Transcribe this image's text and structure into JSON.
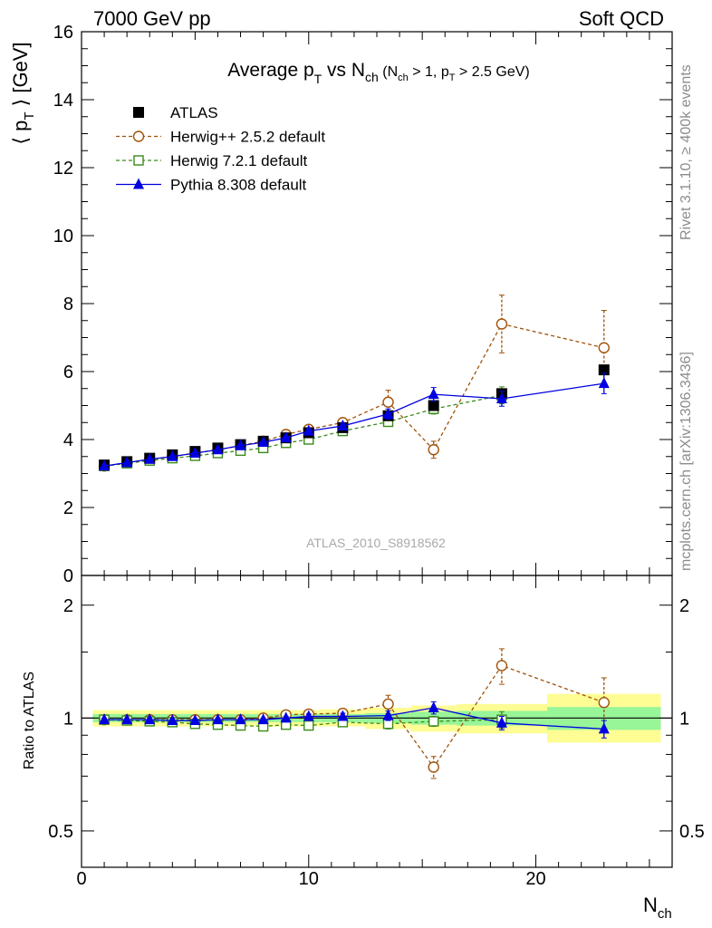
{
  "header": {
    "left": "7000 GeV pp",
    "right": "Soft QCD"
  },
  "side_labels": {
    "rivet": "Rivet 3.1.10, ≥ 400k events",
    "mcplots": "mcplots.cern.ch [arXiv:1306.3436]"
  },
  "analysis_tag": "ATLAS_2010_S8918562",
  "ratio_ylabel": "Ratio to ATLAS",
  "colors": {
    "atlas": "#000000",
    "herwig252": "#a0520a",
    "herwig721": "#3a8a1a",
    "pythia": "#0000e0",
    "band_inner": "#98f598",
    "band_outer": "#fdfd94"
  },
  "chart_data": [
    {
      "type": "scatter",
      "title": "Average p_T vs N_ch (N_ch > 1, p_T > 2.5 GeV)",
      "xlabel": "N_ch",
      "ylabel": "⟨ p_T ⟩ [GeV]",
      "xlim": [
        0,
        26
      ],
      "ylim": [
        0,
        16
      ],
      "x_ticks": [
        0,
        10,
        20
      ],
      "y_ticks": [
        0,
        2,
        4,
        6,
        8,
        10,
        12,
        14,
        16
      ],
      "legend_position": "top-left",
      "series": [
        {
          "name": "ATLAS",
          "marker": "filled-square",
          "x": [
            1,
            2,
            3,
            4,
            5,
            6,
            7,
            8,
            9,
            10,
            11.5,
            13.5,
            15.5,
            18.5,
            23
          ],
          "y": [
            3.25,
            3.35,
            3.45,
            3.55,
            3.65,
            3.75,
            3.85,
            3.95,
            4.05,
            4.2,
            4.35,
            4.7,
            5.0,
            5.35,
            6.05
          ]
        },
        {
          "name": "Herwig++ 2.5.2 default",
          "marker": "open-circle",
          "line": "dashed",
          "x": [
            1,
            2,
            3,
            4,
            5,
            6,
            7,
            8,
            9,
            10,
            11.5,
            13.5,
            15.5,
            18.5,
            23
          ],
          "y": [
            3.22,
            3.32,
            3.42,
            3.5,
            3.6,
            3.7,
            3.82,
            3.95,
            4.15,
            4.3,
            4.5,
            5.1,
            3.7,
            7.4,
            6.7
          ],
          "err": [
            0.03,
            0.03,
            0.03,
            0.03,
            0.03,
            0.04,
            0.04,
            0.05,
            0.06,
            0.07,
            0.1,
            0.35,
            0.25,
            0.85,
            1.1
          ]
        },
        {
          "name": "Herwig 7.2.1 default",
          "marker": "open-square",
          "line": "dashed",
          "x": [
            1,
            2,
            3,
            4,
            5,
            6,
            7,
            8,
            9,
            10,
            11.5,
            13.5,
            15.5,
            18.5
          ],
          "y": [
            3.22,
            3.3,
            3.38,
            3.45,
            3.52,
            3.6,
            3.67,
            3.75,
            3.9,
            4.0,
            4.25,
            4.52,
            4.9,
            5.3
          ],
          "err": [
            0.02,
            0.02,
            0.02,
            0.02,
            0.03,
            0.03,
            0.03,
            0.04,
            0.05,
            0.06,
            0.08,
            0.12,
            0.15,
            0.25
          ]
        },
        {
          "name": "Pythia 8.308 default",
          "marker": "filled-triangle",
          "line": "solid",
          "x": [
            1,
            2,
            3,
            4,
            5,
            6,
            7,
            8,
            9,
            10,
            11.5,
            13.5,
            15.5,
            18.5,
            23
          ],
          "y": [
            3.22,
            3.32,
            3.42,
            3.5,
            3.6,
            3.7,
            3.82,
            3.92,
            4.05,
            4.25,
            4.4,
            4.75,
            5.33,
            5.2,
            5.65
          ],
          "err": [
            0.02,
            0.02,
            0.02,
            0.02,
            0.03,
            0.03,
            0.04,
            0.04,
            0.05,
            0.06,
            0.08,
            0.15,
            0.2,
            0.22,
            0.3
          ]
        }
      ]
    },
    {
      "type": "scatter",
      "title": "",
      "xlabel": "N_ch",
      "ylabel": "Ratio to ATLAS",
      "xlim": [
        0,
        26
      ],
      "ylim": [
        0.4,
        2.4
      ],
      "y_scale": "log",
      "y_ticks": [
        0.5,
        1,
        2
      ],
      "x_ticks": [
        0,
        10,
        20
      ],
      "bands": [
        {
          "x0": 0.5,
          "x1": 1.5,
          "inner": [
            0.975,
            1.025
          ],
          "outer": [
            0.95,
            1.05
          ]
        },
        {
          "x0": 1.5,
          "x1": 2.5,
          "inner": [
            0.975,
            1.025
          ],
          "outer": [
            0.95,
            1.05
          ]
        },
        {
          "x0": 2.5,
          "x1": 3.5,
          "inner": [
            0.975,
            1.025
          ],
          "outer": [
            0.95,
            1.05
          ]
        },
        {
          "x0": 3.5,
          "x1": 4.5,
          "inner": [
            0.975,
            1.025
          ],
          "outer": [
            0.95,
            1.05
          ]
        },
        {
          "x0": 4.5,
          "x1": 5.5,
          "inner": [
            0.975,
            1.025
          ],
          "outer": [
            0.95,
            1.05
          ]
        },
        {
          "x0": 5.5,
          "x1": 6.5,
          "inner": [
            0.975,
            1.025
          ],
          "outer": [
            0.95,
            1.05
          ]
        },
        {
          "x0": 6.5,
          "x1": 7.5,
          "inner": [
            0.975,
            1.025
          ],
          "outer": [
            0.95,
            1.05
          ]
        },
        {
          "x0": 7.5,
          "x1": 8.5,
          "inner": [
            0.975,
            1.025
          ],
          "outer": [
            0.95,
            1.05
          ]
        },
        {
          "x0": 8.5,
          "x1": 9.5,
          "inner": [
            0.975,
            1.025
          ],
          "outer": [
            0.95,
            1.05
          ]
        },
        {
          "x0": 9.5,
          "x1": 10.5,
          "inner": [
            0.975,
            1.025
          ],
          "outer": [
            0.95,
            1.05
          ]
        },
        {
          "x0": 10.5,
          "x1": 12.5,
          "inner": [
            0.975,
            1.025
          ],
          "outer": [
            0.95,
            1.055
          ]
        },
        {
          "x0": 12.5,
          "x1": 14.5,
          "inner": [
            0.97,
            1.03
          ],
          "outer": [
            0.935,
            1.065
          ]
        },
        {
          "x0": 14.5,
          "x1": 16.5,
          "inner": [
            0.96,
            1.04
          ],
          "outer": [
            0.92,
            1.08
          ]
        },
        {
          "x0": 16.5,
          "x1": 20.5,
          "inner": [
            0.955,
            1.045
          ],
          "outer": [
            0.91,
            1.09
          ]
        },
        {
          "x0": 20.5,
          "x1": 25.5,
          "inner": [
            0.93,
            1.07
          ],
          "outer": [
            0.86,
            1.16
          ]
        }
      ],
      "series": [
        {
          "name": "Herwig++ 2.5.2 default",
          "x": [
            1,
            2,
            3,
            4,
            5,
            6,
            7,
            8,
            9,
            10,
            11.5,
            13.5,
            15.5,
            18.5,
            23
          ],
          "y": [
            0.99,
            0.99,
            0.99,
            0.99,
            0.99,
            0.99,
            0.99,
            1.0,
            1.02,
            1.025,
            1.03,
            1.09,
            0.74,
            1.38,
            1.1
          ],
          "err": [
            0.01,
            0.01,
            0.01,
            0.01,
            0.01,
            0.01,
            0.01,
            0.01,
            0.01,
            0.015,
            0.02,
            0.06,
            0.05,
            0.15,
            0.18
          ]
        },
        {
          "name": "Herwig 7.2.1 default",
          "x": [
            1,
            2,
            3,
            4,
            5,
            6,
            7,
            8,
            9,
            10,
            11.5,
            13.5,
            15.5,
            18.5
          ],
          "y": [
            0.99,
            0.985,
            0.98,
            0.975,
            0.965,
            0.96,
            0.955,
            0.95,
            0.96,
            0.955,
            0.975,
            0.965,
            0.98,
            0.99
          ],
          "err": [
            0.01,
            0.01,
            0.01,
            0.01,
            0.01,
            0.01,
            0.01,
            0.01,
            0.01,
            0.015,
            0.02,
            0.03,
            0.03,
            0.05
          ]
        },
        {
          "name": "Pythia 8.308 default",
          "x": [
            1,
            2,
            3,
            4,
            5,
            6,
            7,
            8,
            9,
            10,
            11.5,
            13.5,
            15.5,
            18.5,
            23
          ],
          "y": [
            0.99,
            0.99,
            0.99,
            0.985,
            0.985,
            0.99,
            0.99,
            0.99,
            1.0,
            1.01,
            1.01,
            1.015,
            1.065,
            0.97,
            0.935
          ],
          "err": [
            0.01,
            0.01,
            0.01,
            0.01,
            0.01,
            0.01,
            0.01,
            0.01,
            0.01,
            0.015,
            0.02,
            0.03,
            0.04,
            0.04,
            0.05
          ]
        }
      ]
    }
  ]
}
